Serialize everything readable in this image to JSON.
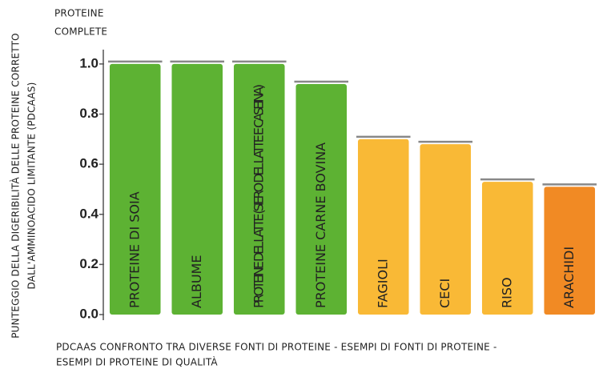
{
  "chart_data": {
    "type": "bar",
    "annotation": [
      "PROTEINE",
      "COMPLETE"
    ],
    "ylabel": [
      "PUNTEGGIO DELLA DIGERIBILITÀ DELLE PROTEINE CORRETTO",
      "DALL'AMMINOACIDO LIMITANTE (PDCAAS)"
    ],
    "xlabel": [
      "PDCAAS CONFRONTO TRA DIVERSE FONTI DI PROTEINE  - ESEMPI DI FONTI DI PROTEINE -",
      "ESEMPI DI PROTEINE DI QUALITÀ"
    ],
    "categories": [
      "PROTEINE DI SOIA",
      "ALBUME",
      "PROTEINE DEL LATTE (SIERO DEL LATTE E CASEINA)",
      "PROTEINE CARNE BOVINA",
      "FAGIOLI",
      "CECI",
      "RISO",
      "ARACHIDI"
    ],
    "values": [
      1.0,
      1.0,
      1.0,
      0.92,
      0.7,
      0.68,
      0.53,
      0.51
    ],
    "colors": [
      "#5db233",
      "#5db233",
      "#5db233",
      "#5db233",
      "#f9b936",
      "#f9b936",
      "#f9b936",
      "#f18a24"
    ],
    "ylim": [
      0,
      1.07
    ],
    "yticks": [
      {
        "value": 0,
        "label": "0.0"
      },
      0.2,
      0.4,
      0.6,
      0.8,
      {
        "value": 1,
        "label": "1.0"
      }
    ],
    "grid": false
  }
}
